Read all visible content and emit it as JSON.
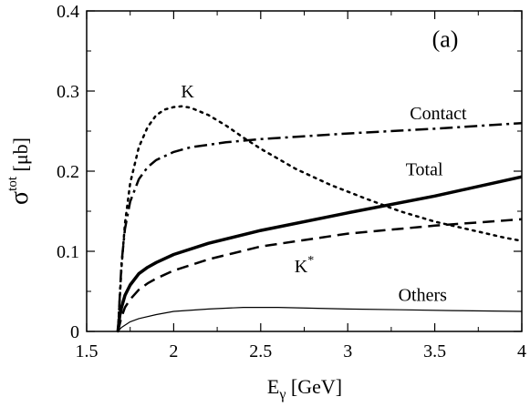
{
  "chart_data": {
    "type": "line",
    "xlabel": "E",
    "xlabel_sub": "γ",
    "xlabel_unit": " [GeV]",
    "ylabel": "σ",
    "ylabel_sup": "tot",
    "ylabel_unit": " [μb]",
    "xlim": [
      1.5,
      4.0
    ],
    "ylim": [
      0.0,
      0.4
    ],
    "grid": false,
    "legend": "none",
    "xticks": [
      1.5,
      2.0,
      2.5,
      3.0,
      3.5,
      4.0
    ],
    "xtick_labels": [
      "1.5",
      "2",
      "2.5",
      "3",
      "3.5",
      "4"
    ],
    "yticks": [
      0.0,
      0.1,
      0.2,
      0.3,
      0.4
    ],
    "ytick_labels": [
      "0",
      "0.1",
      "0.2",
      "0.3",
      "0.4"
    ],
    "annotations": [
      {
        "text": "(a)",
        "x": 3.56,
        "y": 0.355,
        "kind": "panel"
      },
      {
        "text": "K",
        "x": 2.08,
        "y": 0.292,
        "kind": "label"
      },
      {
        "text": "Contact",
        "x": 3.52,
        "y": 0.265,
        "kind": "label"
      },
      {
        "text": "Total",
        "x": 3.44,
        "y": 0.195,
        "kind": "label"
      },
      {
        "text": "K",
        "sup": "*",
        "x": 2.75,
        "y": 0.074,
        "kind": "label"
      },
      {
        "text": "Others",
        "x": 3.43,
        "y": 0.038,
        "kind": "label"
      }
    ],
    "series": [
      {
        "id": "k",
        "style": "dotted",
        "stroke_width": 2.5,
        "x": [
          1.68,
          1.7,
          1.72,
          1.75,
          1.8,
          1.85,
          1.9,
          1.95,
          2.0,
          2.05,
          2.1,
          2.2,
          2.3,
          2.4,
          2.5,
          2.7,
          2.9,
          3.1,
          3.3,
          3.5,
          3.7,
          3.9,
          4.0
        ],
        "y": [
          0.0,
          0.08,
          0.135,
          0.185,
          0.23,
          0.255,
          0.27,
          0.277,
          0.28,
          0.281,
          0.279,
          0.27,
          0.257,
          0.242,
          0.228,
          0.203,
          0.183,
          0.166,
          0.15,
          0.137,
          0.127,
          0.117,
          0.113
        ]
      },
      {
        "id": "contact",
        "style": "dashdot",
        "stroke_width": 2.5,
        "x": [
          1.68,
          1.7,
          1.72,
          1.75,
          1.8,
          1.85,
          1.9,
          2.0,
          2.1,
          2.2,
          2.3,
          2.5,
          3.0,
          3.5,
          4.0
        ],
        "y": [
          0.0,
          0.085,
          0.128,
          0.162,
          0.19,
          0.205,
          0.214,
          0.224,
          0.23,
          0.233,
          0.236,
          0.24,
          0.247,
          0.253,
          0.26
        ]
      },
      {
        "id": "total",
        "style": "solid",
        "stroke_width": 3.5,
        "x": [
          1.68,
          1.69,
          1.7,
          1.72,
          1.75,
          1.8,
          1.85,
          1.9,
          2.0,
          2.2,
          2.5,
          3.0,
          3.5,
          4.0
        ],
        "y": [
          0.0,
          0.02,
          0.03,
          0.045,
          0.058,
          0.072,
          0.08,
          0.086,
          0.096,
          0.11,
          0.126,
          0.148,
          0.169,
          0.193
        ]
      },
      {
        "id": "kstar",
        "style": "dashed",
        "stroke_width": 2.5,
        "x": [
          1.68,
          1.7,
          1.72,
          1.75,
          1.8,
          1.85,
          1.9,
          2.0,
          2.2,
          2.5,
          3.0,
          3.5,
          4.0
        ],
        "y": [
          0.0,
          0.018,
          0.03,
          0.04,
          0.052,
          0.06,
          0.066,
          0.076,
          0.09,
          0.106,
          0.122,
          0.132,
          0.14
        ]
      },
      {
        "id": "others",
        "style": "solid",
        "stroke_width": 1.2,
        "x": [
          1.68,
          1.7,
          1.75,
          1.8,
          1.9,
          2.0,
          2.2,
          2.4,
          2.6,
          2.8,
          3.0,
          3.3,
          3.6,
          4.0
        ],
        "y": [
          0.0,
          0.005,
          0.012,
          0.016,
          0.021,
          0.025,
          0.028,
          0.03,
          0.03,
          0.029,
          0.028,
          0.027,
          0.026,
          0.025
        ]
      }
    ]
  }
}
